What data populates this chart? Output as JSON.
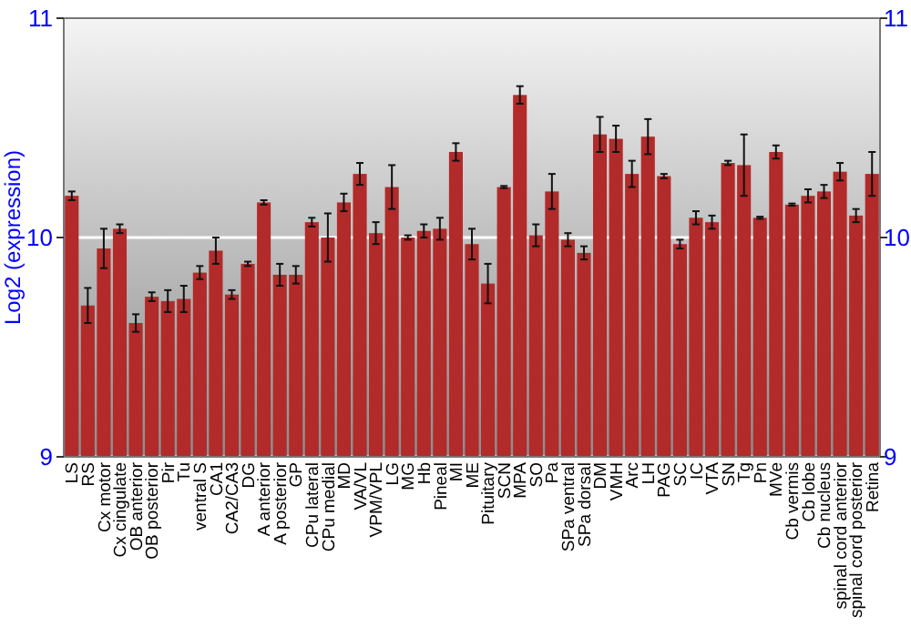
{
  "chart_data": {
    "type": "bar",
    "ylabel": "Log2 (expression)",
    "categories": [
      "LS",
      "RS",
      "Cx motor",
      "Cx cingulate",
      "OB anterior",
      "OB posterior",
      "Pir",
      "Tu",
      "ventral S",
      "CA1",
      "CA2/CA3",
      "DG",
      "A anterior",
      "A posterior",
      "GP",
      "CPu lateral",
      "CPu medial",
      "MD",
      "VA/VL",
      "VPM/VPL",
      "LG",
      "MG",
      "Hb",
      "Pineal",
      "MI",
      "ME",
      "Pituitary",
      "SCN",
      "MPA",
      "SO",
      "Pa",
      "SPa ventral",
      "SPa dorsal",
      "DM",
      "VMH",
      "Arc",
      "LH",
      "PAG",
      "SC",
      "IC",
      "VTA",
      "SN",
      "Tg",
      "Pn",
      "MVe",
      "Cb vermis",
      "Cb lobe",
      "Cb nucleus",
      "spinal cord anterior",
      "spinal cord posterior",
      "Retina"
    ],
    "values": [
      10.19,
      9.69,
      9.95,
      10.04,
      9.61,
      9.73,
      9.71,
      9.72,
      9.84,
      9.94,
      9.74,
      9.88,
      10.16,
      9.83,
      9.83,
      10.07,
      10.0,
      10.16,
      10.29,
      10.02,
      10.23,
      10.0,
      10.03,
      10.04,
      10.39,
      9.97,
      9.79,
      10.23,
      10.65,
      10.01,
      10.21,
      9.99,
      9.93,
      10.47,
      10.45,
      10.29,
      10.46,
      10.28,
      9.97,
      10.09,
      10.07,
      10.34,
      10.33,
      10.09,
      10.39,
      10.15,
      10.19,
      10.21,
      10.3,
      10.1,
      10.29
    ],
    "errors": [
      0.02,
      0.08,
      0.09,
      0.02,
      0.04,
      0.02,
      0.05,
      0.06,
      0.03,
      0.06,
      0.02,
      0.01,
      0.01,
      0.05,
      0.04,
      0.02,
      0.11,
      0.04,
      0.05,
      0.05,
      0.1,
      0.01,
      0.03,
      0.05,
      0.04,
      0.07,
      0.09,
      0.005,
      0.04,
      0.05,
      0.08,
      0.03,
      0.03,
      0.08,
      0.06,
      0.06,
      0.08,
      0.01,
      0.02,
      0.03,
      0.03,
      0.01,
      0.14,
      0.005,
      0.03,
      0.005,
      0.03,
      0.03,
      0.04,
      0.03,
      0.1
    ],
    "color": "#b22a2a",
    "ylim": [
      9,
      11
    ],
    "yticks": [
      9,
      10,
      11
    ],
    "y2lim": [
      9,
      11
    ],
    "y2ticks": [
      9,
      10,
      11
    ],
    "grid": "y"
  }
}
